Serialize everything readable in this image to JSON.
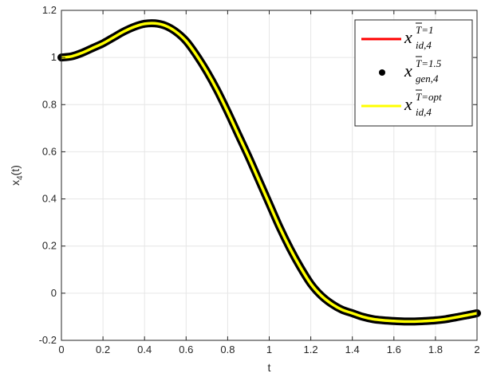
{
  "chart_data": {
    "type": "line",
    "xlabel": "t",
    "ylabel_main": "x",
    "ylabel_sub": "4",
    "ylabel_tail": "(t)",
    "xlim": [
      0,
      2
    ],
    "ylim": [
      -0.2,
      1.2
    ],
    "grid": true,
    "legend_position": "top-right",
    "x_ticks": [
      0,
      0.2,
      0.4,
      0.6,
      0.8,
      1,
      1.2,
      1.4,
      1.6,
      1.8,
      2
    ],
    "x_tick_labels": [
      "0",
      "0.2",
      "0.4",
      "0.6",
      "0.8",
      "1",
      "1.2",
      "1.4",
      "1.6",
      "1.8",
      "2"
    ],
    "y_ticks": [
      -0.2,
      0,
      0.2,
      0.4,
      0.6,
      0.8,
      1,
      1.2
    ],
    "y_tick_labels": [
      "-0.2",
      "0",
      "0.2",
      "0.4",
      "0.6",
      "0.8",
      "1",
      "1.2"
    ],
    "x": [
      0,
      0.05,
      0.1,
      0.15,
      0.2,
      0.25,
      0.3,
      0.35,
      0.4,
      0.45,
      0.5,
      0.55,
      0.6,
      0.65,
      0.7,
      0.75,
      0.8,
      0.85,
      0.9,
      0.95,
      1.0,
      1.05,
      1.1,
      1.15,
      1.2,
      1.25,
      1.3,
      1.35,
      1.4,
      1.45,
      1.5,
      1.55,
      1.6,
      1.65,
      1.7,
      1.75,
      1.8,
      1.85,
      1.9,
      1.95,
      2.0
    ],
    "series": [
      {
        "legend_main": "x",
        "legend_sup": "T=1",
        "legend_sub": "id,4",
        "color": "#ff0000",
        "style": "line",
        "values": [
          1.0,
          1.005,
          1.02,
          1.04,
          1.06,
          1.085,
          1.11,
          1.13,
          1.143,
          1.145,
          1.135,
          1.11,
          1.07,
          1.01,
          0.94,
          0.86,
          0.77,
          0.675,
          0.58,
          0.48,
          0.38,
          0.28,
          0.19,
          0.11,
          0.04,
          -0.01,
          -0.045,
          -0.07,
          -0.085,
          -0.1,
          -0.11,
          -0.115,
          -0.118,
          -0.12,
          -0.12,
          -0.118,
          -0.115,
          -0.11,
          -0.102,
          -0.094,
          -0.085
        ]
      },
      {
        "legend_main": "x",
        "legend_sup": "T=1.5",
        "legend_sub": "gen,4",
        "color": "#000000",
        "style": "markers",
        "values": [
          1.0,
          1.005,
          1.02,
          1.04,
          1.06,
          1.085,
          1.11,
          1.13,
          1.143,
          1.145,
          1.135,
          1.11,
          1.07,
          1.01,
          0.94,
          0.86,
          0.77,
          0.675,
          0.58,
          0.48,
          0.38,
          0.28,
          0.19,
          0.11,
          0.04,
          -0.01,
          -0.045,
          -0.07,
          -0.085,
          -0.1,
          -0.11,
          -0.115,
          -0.118,
          -0.12,
          -0.12,
          -0.118,
          -0.115,
          -0.11,
          -0.102,
          -0.094,
          -0.085
        ]
      },
      {
        "legend_main": "x",
        "legend_sup": "T=opt",
        "legend_sub": "id,4",
        "color": "#ffff00",
        "style": "line",
        "values": [
          1.0,
          1.005,
          1.02,
          1.04,
          1.06,
          1.085,
          1.11,
          1.13,
          1.143,
          1.145,
          1.135,
          1.11,
          1.07,
          1.01,
          0.94,
          0.86,
          0.77,
          0.675,
          0.58,
          0.48,
          0.38,
          0.28,
          0.19,
          0.11,
          0.04,
          -0.01,
          -0.045,
          -0.07,
          -0.085,
          -0.1,
          -0.11,
          -0.115,
          -0.118,
          -0.12,
          -0.12,
          -0.118,
          -0.115,
          -0.11,
          -0.102,
          -0.094,
          -0.085
        ]
      }
    ]
  }
}
